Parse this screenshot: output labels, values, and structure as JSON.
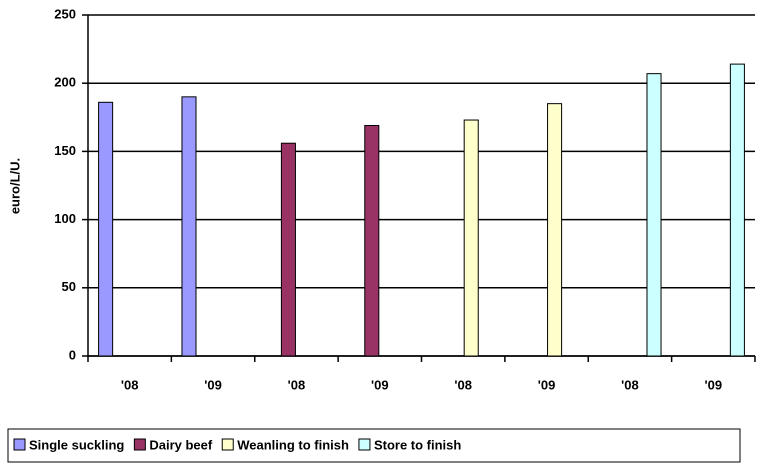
{
  "chart_data": {
    "type": "bar",
    "y_label": "euro/L/U.",
    "categories": [
      "'08",
      "'09",
      "'08",
      "'09",
      "'08",
      "'09",
      "'08",
      "'09"
    ],
    "series": [
      {
        "name": "Single suckling",
        "color": "#9999ff",
        "values": [
          186,
          190,
          null,
          null,
          null,
          null,
          null,
          null
        ]
      },
      {
        "name": "Dairy beef",
        "color": "#993366",
        "values": [
          null,
          null,
          156,
          169,
          null,
          null,
          null,
          null
        ]
      },
      {
        "name": "Weanling to finish",
        "color": "#ffffcc",
        "values": [
          null,
          null,
          null,
          null,
          173,
          185,
          null,
          null
        ]
      },
      {
        "name": "Store to finish",
        "color": "#ccffff",
        "values": [
          null,
          null,
          null,
          null,
          null,
          null,
          207,
          214
        ]
      }
    ],
    "ylim": [
      0,
      250
    ],
    "yticks": [
      0,
      50,
      100,
      150,
      200,
      250
    ],
    "grid": true
  }
}
